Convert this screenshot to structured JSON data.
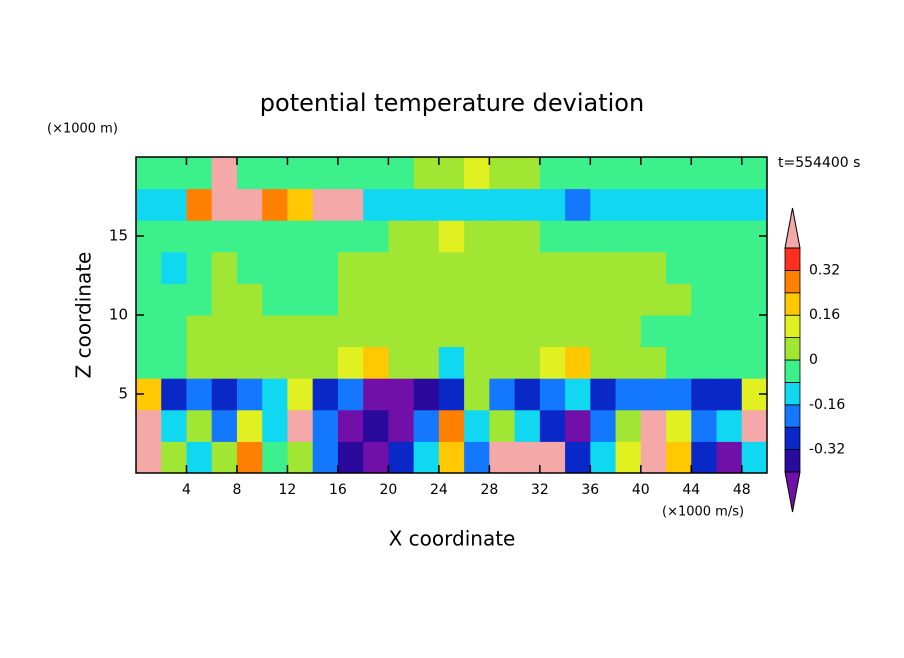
{
  "chart_data": {
    "type": "contour",
    "title": "potential temperature deviation",
    "x_label": "X coordinate",
    "y_label": "Z coordinate",
    "x_unit": "(×1000 m/s)",
    "y_unit": "(×1000 m)",
    "annotation": "t=554400 s",
    "xlim": [
      0,
      50
    ],
    "ylim": [
      0,
      20
    ],
    "xticks": [
      4,
      8,
      12,
      16,
      20,
      24,
      28,
      32,
      36,
      40,
      44,
      48
    ],
    "yticks": [
      5,
      10,
      15
    ],
    "x": [
      1,
      3,
      5,
      7,
      9,
      11,
      13,
      15,
      17,
      19,
      21,
      23,
      25,
      27,
      29,
      31,
      33,
      35,
      37,
      39,
      41,
      43,
      45,
      47,
      49
    ],
    "y": [
      1,
      3,
      5,
      7,
      9,
      11,
      13,
      15,
      17,
      19
    ],
    "z": [
      [
        0.45,
        0.0,
        -0.1,
        0.05,
        0.3,
        -0.05,
        0.0,
        -0.2,
        -0.35,
        -0.45,
        -0.3,
        -0.1,
        0.2,
        -0.2,
        0.45,
        0.45,
        0.45,
        -0.3,
        -0.1,
        0.1,
        0.45,
        0.2,
        -0.3,
        -0.45,
        -0.1
      ],
      [
        0.45,
        -0.1,
        0.05,
        -0.2,
        0.1,
        -0.1,
        0.45,
        -0.2,
        -0.45,
        -0.35,
        -0.45,
        -0.2,
        0.3,
        -0.1,
        0.0,
        -0.1,
        -0.3,
        -0.45,
        -0.2,
        0.0,
        0.45,
        0.1,
        -0.2,
        -0.1,
        0.45
      ],
      [
        0.2,
        -0.3,
        -0.2,
        -0.3,
        -0.2,
        -0.1,
        0.1,
        -0.3,
        -0.2,
        -0.45,
        -0.45,
        -0.4,
        -0.3,
        0.05,
        -0.2,
        -0.3,
        -0.2,
        -0.1,
        -0.3,
        -0.2,
        -0.2,
        -0.2,
        -0.3,
        -0.3,
        0.1
      ],
      [
        -0.05,
        -0.04,
        0.02,
        0.03,
        0.04,
        0.02,
        0.01,
        0.03,
        0.1,
        0.2,
        0.06,
        0.04,
        -0.1,
        0.02,
        0.03,
        0.04,
        0.15,
        0.2,
        0.05,
        0.02,
        0.0,
        -0.02,
        -0.05,
        -0.04,
        -0.05
      ],
      [
        -0.05,
        -0.03,
        0.02,
        0.04,
        0.03,
        0.01,
        0.02,
        0.03,
        0.05,
        0.06,
        0.04,
        0.03,
        0.04,
        0.03,
        0.02,
        0.05,
        0.06,
        0.04,
        0.03,
        0.01,
        -0.02,
        -0.03,
        -0.05,
        -0.04,
        -0.05
      ],
      [
        -0.04,
        -0.03,
        -0.02,
        0.02,
        0.03,
        -0.02,
        -0.03,
        -0.04,
        0.03,
        0.04,
        0.03,
        0.02,
        0.04,
        0.03,
        0.02,
        0.03,
        0.02,
        0.03,
        0.02,
        0.01,
        0.02,
        0.03,
        -0.02,
        -0.03,
        -0.04
      ],
      [
        -0.04,
        -0.1,
        -0.03,
        0.02,
        -0.02,
        -0.03,
        -0.04,
        -0.03,
        0.02,
        0.03,
        0.04,
        0.03,
        0.05,
        0.04,
        0.03,
        0.02,
        0.03,
        0.03,
        0.02,
        0.03,
        0.02,
        -0.02,
        -0.03,
        -0.04,
        -0.04
      ],
      [
        -0.05,
        -0.04,
        -0.03,
        -0.03,
        -0.04,
        -0.04,
        -0.03,
        -0.04,
        -0.03,
        -0.02,
        0.02,
        0.03,
        0.1,
        0.03,
        0.02,
        0.01,
        -0.02,
        -0.03,
        -0.03,
        -0.04,
        -0.03,
        -0.04,
        -0.04,
        -0.05,
        -0.05
      ],
      [
        -0.1,
        -0.12,
        0.3,
        0.45,
        0.45,
        0.3,
        0.2,
        0.45,
        0.45,
        -0.1,
        -0.1,
        -0.12,
        -0.1,
        -0.1,
        -0.12,
        -0.1,
        -0.15,
        -0.2,
        -0.12,
        -0.1,
        -0.12,
        -0.1,
        -0.12,
        -0.1,
        -0.12
      ],
      [
        -0.04,
        -0.05,
        -0.03,
        0.45,
        -0.03,
        -0.02,
        -0.05,
        -0.04,
        -0.03,
        -0.04,
        -0.03,
        0.02,
        0.05,
        0.1,
        0.05,
        0.02,
        -0.03,
        -0.04,
        -0.05,
        -0.04,
        -0.03,
        -0.04,
        -0.05,
        -0.04,
        -0.05
      ]
    ],
    "levels": [
      -0.4,
      -0.32,
      -0.24,
      -0.16,
      -0.08,
      0,
      0.08,
      0.16,
      0.24,
      0.32,
      0.4
    ],
    "colors": [
      "#7010a8",
      "#2a0a9c",
      "#0a28c8",
      "#1478ff",
      "#10d8f0",
      "#3cf08c",
      "#a0e632",
      "#e0f020",
      "#ffc800",
      "#ff8000",
      "#ff3020",
      "#f4a8a8"
    ],
    "colorbar_ticks": [
      0.32,
      0.16,
      0,
      -0.16,
      -0.32
    ]
  }
}
